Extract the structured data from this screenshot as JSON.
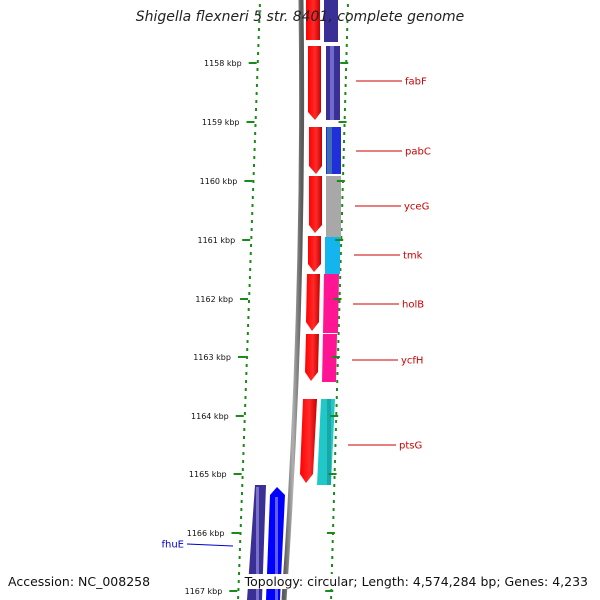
{
  "title": "Shigella flexneri 5 str. 8401, complete genome",
  "footer": {
    "accession": "Accession: NC_008258",
    "info": "Topology: circular; Length: 4,574,284 bp; Genes: 4,233"
  },
  "colors": {
    "tick": "#1a8a1a",
    "label_forward": "#cc0000",
    "label_reverse": "#0000cc",
    "backbone": "#8a8a8a",
    "cds": "#ff0000"
  },
  "ticks": [
    "1158 kbp",
    "1159 kbp",
    "1160 kbp",
    "1161 kbp",
    "1162 kbp",
    "1163 kbp",
    "1164 kbp",
    "1165 kbp",
    "1166 kbp",
    "1167 kbp"
  ],
  "genes": [
    {
      "label": "fabF",
      "color": "#3a2f94"
    },
    {
      "label": "pabC",
      "color": "#1f2fd9"
    },
    {
      "label": "yceG",
      "color": "#a8a8a8"
    },
    {
      "label": "tmk",
      "color": "#14b4ee"
    },
    {
      "label": "holB",
      "color": "#ff1493"
    },
    {
      "label": "ycfH",
      "color": "#ff1493"
    },
    {
      "label": "ptsG",
      "color": "#20c8c8"
    },
    {
      "label": "fhuE",
      "color": "#0000ff"
    }
  ]
}
